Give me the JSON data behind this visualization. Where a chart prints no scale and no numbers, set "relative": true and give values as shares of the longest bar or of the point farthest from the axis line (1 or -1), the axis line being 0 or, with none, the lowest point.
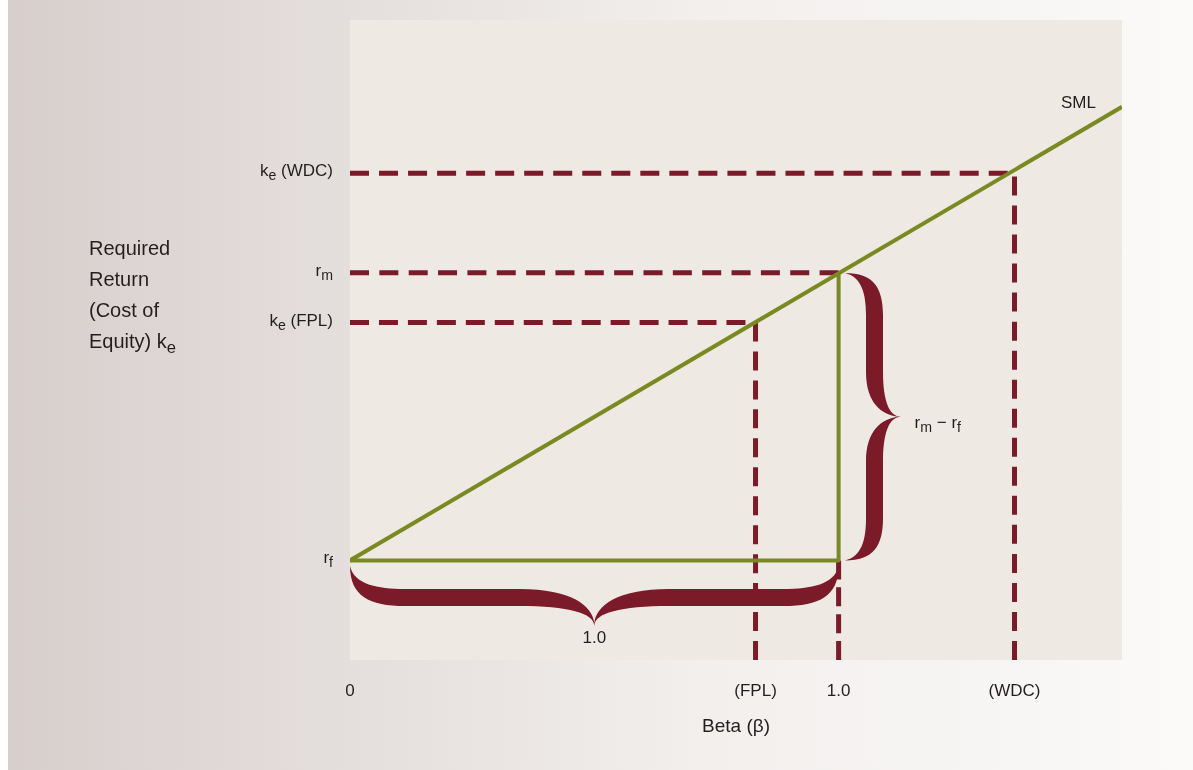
{
  "chart_data": {
    "type": "line",
    "xlabel": "Beta (β)",
    "relative": true,
    "marker": "none",
    "xlim": [
      0,
      1.58
    ],
    "xticks": [
      0,
      {
        "value": 0.83,
        "label": "(FPL)"
      },
      {
        "value": 1,
        "label": "1.0"
      },
      {
        "value": 1.36,
        "label": "(WDC)"
      }
    ],
    "series": [
      {
        "name": "SML",
        "color": "#7a8a22",
        "x": [
          0,
          1.58
        ],
        "values": [
          0.18,
          1.0
        ]
      },
      {
        "name": "r$_{f}$",
        "color": "#7a8a22",
        "x": [
          0,
          1,
          1
        ],
        "values": [
          0.18,
          0.18,
          0.7
        ]
      },
      {
        "name": "k$_{e}$ (WDC)",
        "color": "#7b1a28",
        "line_style": "dashed",
        "x": [
          0,
          1.36,
          1.36
        ],
        "values": [
          0.88,
          0.88,
          0
        ]
      },
      {
        "name": "r$_{m}$",
        "color": "#7b1a28",
        "line_style": "dashed",
        "x": [
          0,
          1
        ],
        "values": [
          0.7,
          0.7
        ]
      },
      {
        "color": "#7b1a28",
        "line_style": "dashed",
        "x": [
          1,
          1
        ],
        "values": [
          0.18,
          0
        ]
      },
      {
        "name": "k$_{e}$ (FPL)",
        "color": "#7b1a28",
        "line_style": "dashed",
        "x": [
          0,
          0.83,
          0.83
        ],
        "values": [
          0.61,
          0.61,
          0
        ]
      }
    ],
    "annotations": [
      "1.0",
      "r$_{m}$ − r$_{f}$",
      "Required Return (Cost of Equity) k$_{e}$"
    ]
  }
}
